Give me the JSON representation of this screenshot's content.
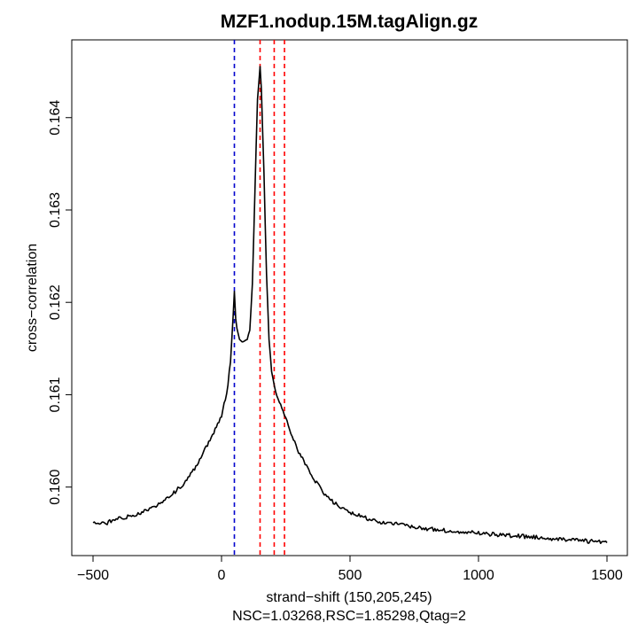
{
  "chart_data": {
    "type": "line",
    "title": "MZF1.nodup.15M.tagAlign.gz",
    "xlabel": "strand−shift (150,205,245)",
    "xlabel2": "NSC=1.03268,RSC=1.85298,Qtag=2",
    "ylabel": "cross−correlation",
    "xlim": [
      -500,
      1500
    ],
    "ylim": [
      0.15945,
      0.16465
    ],
    "x_ticks": [
      -500,
      0,
      500,
      1000,
      1500
    ],
    "x_tick_labels": [
      "−500",
      "0",
      "500",
      "1000",
      "1500"
    ],
    "y_ticks": [
      0.16,
      0.161,
      0.162,
      0.163,
      0.164
    ],
    "y_tick_labels": [
      "0.160",
      "0.161",
      "0.162",
      "0.163",
      "0.164"
    ],
    "grid": false,
    "legend": "none",
    "colors": {
      "line": "#000000",
      "red_marker": "#ff0000",
      "blue_marker": "#0000cd"
    },
    "vlines": [
      {
        "x": 50,
        "color": "blue"
      },
      {
        "x": 150,
        "color": "red"
      },
      {
        "x": 205,
        "color": "red"
      },
      {
        "x": 245,
        "color": "red"
      }
    ],
    "series": [
      {
        "points": [
          [
            -500,
            0.15962
          ],
          [
            -450,
            0.15961
          ],
          [
            -400,
            0.15966
          ],
          [
            -350,
            0.15969
          ],
          [
            -300,
            0.15974
          ],
          [
            -250,
            0.15981
          ],
          [
            -200,
            0.1599
          ],
          [
            -150,
            0.16003
          ],
          [
            -100,
            0.16022
          ],
          [
            -60,
            0.16043
          ],
          [
            -30,
            0.1606
          ],
          [
            0,
            0.16078
          ],
          [
            20,
            0.161
          ],
          [
            35,
            0.16135
          ],
          [
            45,
            0.16185
          ],
          [
            50,
            0.16212
          ],
          [
            55,
            0.16182
          ],
          [
            60,
            0.16172
          ],
          [
            70,
            0.1616
          ],
          [
            80,
            0.16157
          ],
          [
            90,
            0.16158
          ],
          [
            100,
            0.1616
          ],
          [
            110,
            0.1617
          ],
          [
            120,
            0.1622
          ],
          [
            130,
            0.1632
          ],
          [
            140,
            0.1642
          ],
          [
            150,
            0.16455
          ],
          [
            155,
            0.1643
          ],
          [
            165,
            0.1634
          ],
          [
            175,
            0.1623
          ],
          [
            185,
            0.1616
          ],
          [
            195,
            0.16125
          ],
          [
            205,
            0.1611
          ],
          [
            220,
            0.16095
          ],
          [
            245,
            0.16078
          ],
          [
            270,
            0.16058
          ],
          [
            300,
            0.16038
          ],
          [
            350,
            0.16012
          ],
          [
            400,
            0.15993
          ],
          [
            450,
            0.1598
          ],
          [
            500,
            0.15972
          ],
          [
            600,
            0.15963
          ],
          [
            700,
            0.15959
          ],
          [
            800,
            0.15955
          ],
          [
            900,
            0.15952
          ],
          [
            1000,
            0.1595
          ],
          [
            1100,
            0.15948
          ],
          [
            1200,
            0.15946
          ],
          [
            1300,
            0.15944
          ],
          [
            1400,
            0.15942
          ],
          [
            1500,
            0.1594
          ]
        ]
      }
    ]
  }
}
